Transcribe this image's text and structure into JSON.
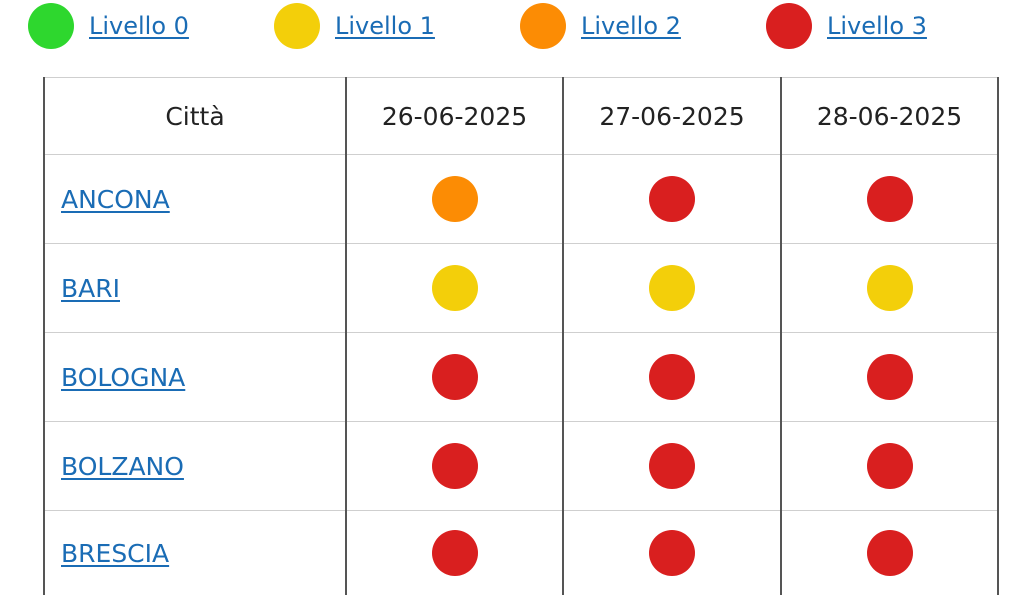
{
  "colors": {
    "level_0": "#2ed72e",
    "level_1": "#f3cf0a",
    "level_2": "#fc8c04",
    "level_3": "#d91f1f"
  },
  "legend": [
    {
      "level": 0,
      "label": "Livello 0",
      "icon": "green-circle-icon"
    },
    {
      "level": 1,
      "label": "Livello 1",
      "icon": "yellow-circle-icon"
    },
    {
      "level": 2,
      "label": "Livello 2",
      "icon": "orange-circle-icon"
    },
    {
      "level": 3,
      "label": "Livello 3",
      "icon": "red-circle-icon"
    }
  ],
  "table": {
    "headers": [
      "Città",
      "26-06-2025",
      "27-06-2025",
      "28-06-2025"
    ],
    "rows": [
      {
        "city": "ANCONA",
        "levels": [
          2,
          3,
          3
        ]
      },
      {
        "city": "BARI",
        "levels": [
          1,
          1,
          1
        ]
      },
      {
        "city": "BOLOGNA",
        "levels": [
          3,
          3,
          3
        ]
      },
      {
        "city": "BOLZANO",
        "levels": [
          3,
          3,
          3
        ]
      },
      {
        "city": "BRESCIA",
        "levels": [
          3,
          3,
          3
        ]
      }
    ]
  }
}
